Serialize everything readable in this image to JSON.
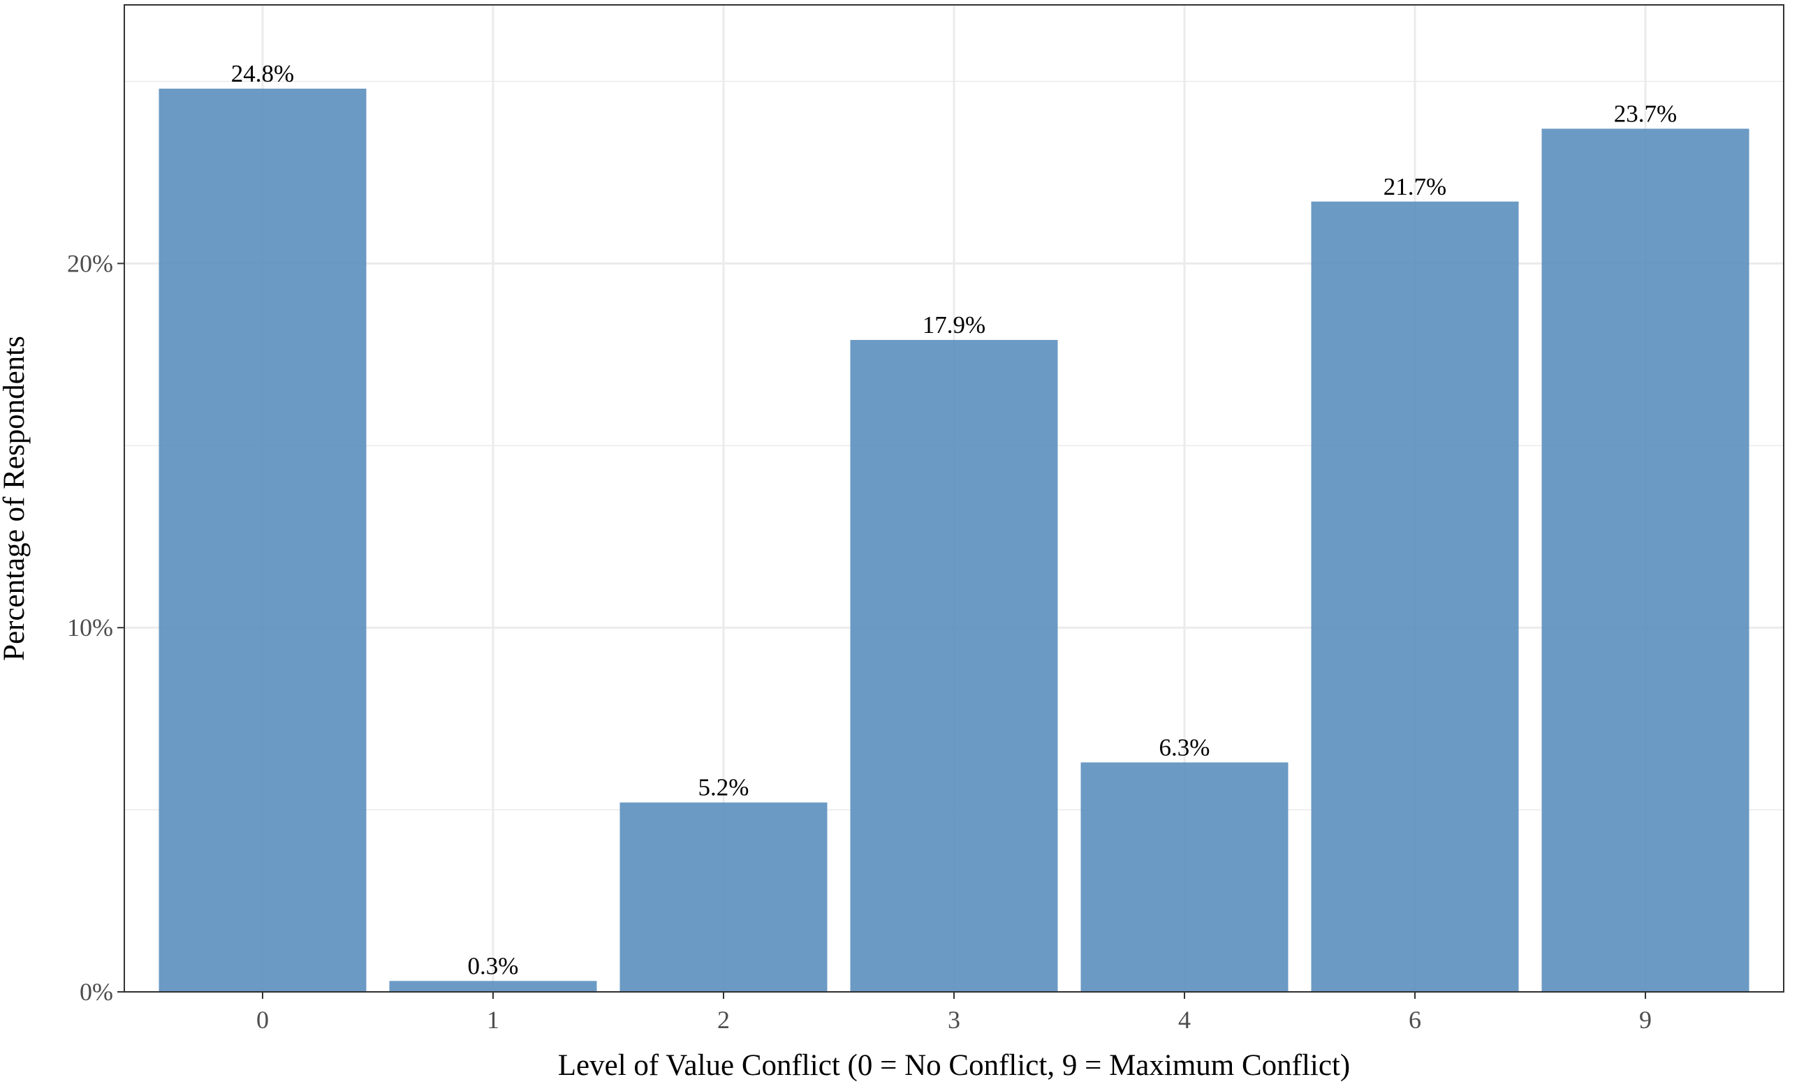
{
  "chart_data": {
    "type": "bar",
    "categories": [
      "0",
      "1",
      "2",
      "3",
      "4",
      "6",
      "9"
    ],
    "values": [
      24.8,
      0.3,
      5.2,
      17.9,
      6.3,
      21.7,
      23.7
    ],
    "data_labels": [
      "24.8%",
      "0.3%",
      "5.2%",
      "17.9%",
      "6.3%",
      "21.7%",
      "23.7%"
    ],
    "title": "",
    "xlabel": "Level of Value Conflict (0 = No Conflict, 9 = Maximum Conflict)",
    "ylabel": "Percentage of Respondents",
    "ylim": [
      0,
      27.1
    ],
    "yticks": [
      0,
      10,
      20
    ],
    "ytick_labels": [
      "0%",
      "10%",
      "20%"
    ],
    "grid": true,
    "legend": "none",
    "colors": {
      "bar": "#5b8fbe",
      "grid": "#ebebeb",
      "panel_border": "#333333"
    }
  }
}
